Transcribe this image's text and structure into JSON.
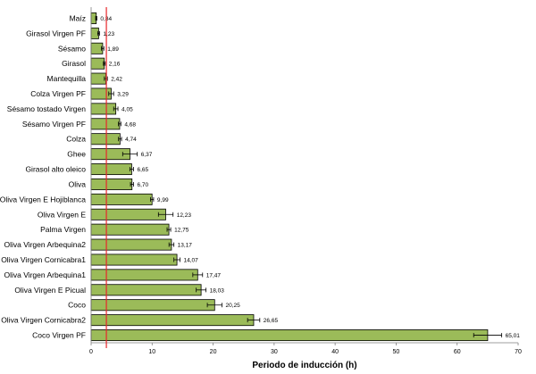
{
  "chart_data": {
    "type": "bar",
    "orientation": "horizontal",
    "categories": [
      "Maíz",
      "Girasol Virgen PF",
      "Sésamo",
      "Girasol",
      "Mantequilla",
      "Colza Virgen PF",
      "Sésamo tostado Virgen",
      "Sésamo Virgen PF",
      "Colza",
      "Ghee",
      "Girasol alto oleico",
      "Oliva",
      "Oliva Virgen E Hojiblanca",
      "Oliva Virgen E",
      "Palma Virgen",
      "Oliva Virgen Arbequina2",
      "Oliva Virgen Cornicabra1",
      "Oliva Virgen Arbequina1",
      "Oliva Virgen E Picual",
      "Coco",
      "Oliva Virgen Cornicabra2",
      "Coco Virgen PF"
    ],
    "values": [
      0.84,
      1.23,
      1.89,
      2.16,
      2.42,
      3.29,
      4.05,
      4.68,
      4.74,
      6.37,
      6.65,
      6.7,
      9.99,
      12.23,
      12.75,
      13.17,
      14.07,
      17.47,
      18.03,
      20.25,
      26.65,
      65.01
    ],
    "value_labels": [
      "0,84",
      "1,23",
      "1,89",
      "2,16",
      "2,42",
      "3,29",
      "4,05",
      "4,68",
      "4,74",
      "6,37",
      "6,65",
      "6,70",
      "9,99",
      "12,23",
      "12,75",
      "13,17",
      "14,07",
      "17,47",
      "18,03",
      "20,25",
      "26,65",
      "65,01"
    ],
    "errors": [
      0.1,
      0.15,
      0.2,
      0.15,
      0.25,
      0.4,
      0.35,
      0.2,
      0.25,
      1.2,
      0.3,
      0.25,
      0.25,
      1.2,
      0.3,
      0.4,
      0.5,
      0.8,
      0.8,
      1.2,
      1.0,
      2.3
    ],
    "xlabel": "Periodo de inducción (h)",
    "ylabel": "",
    "title": "",
    "xlim": [
      0,
      70
    ],
    "xticks": [
      "0",
      "10",
      "20",
      "30",
      "40",
      "50",
      "60",
      "70"
    ],
    "reference_line_x": 2.5,
    "colors": {
      "bar": "#9bbb59",
      "bar_stroke": "#000000",
      "reference_line": "#e8262b",
      "axis": "#7f7f7f"
    },
    "grid": false,
    "legend": "none"
  }
}
